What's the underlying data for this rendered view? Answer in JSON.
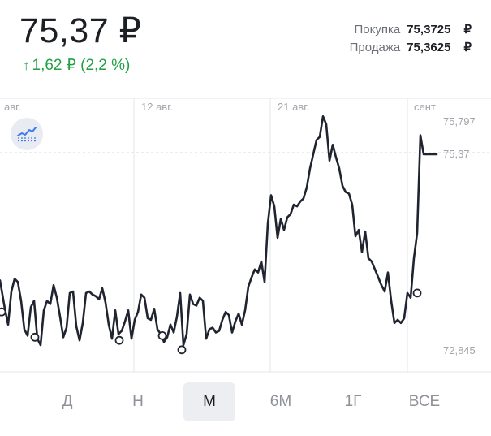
{
  "header": {
    "price": "75,37 ₽",
    "change": "1,62 ₽ (2,2 %)",
    "rates": [
      {
        "label": "Покупка",
        "value": "75,3725",
        "currency": "₽"
      },
      {
        "label": "Продажа",
        "value": "75,3625",
        "currency": "₽"
      }
    ]
  },
  "colors": {
    "line": "#1f2430",
    "up": "#23a045",
    "grid": "#e3e5e8",
    "axis_text": "#a2a6ac",
    "active_bg": "#eceef2"
  },
  "icons": {
    "change": "arrow-up-icon",
    "indicator": "trend-chart-icon"
  },
  "chart_data": {
    "type": "line",
    "x_labels": [
      "авг.",
      "12 авг.",
      "21 авг.",
      "сент"
    ],
    "y_labels": [
      "75,797",
      "75,37",
      "72,845"
    ],
    "ylim": [
      72.6,
      76.08
    ],
    "x": [
      0,
      6,
      10,
      14,
      18,
      22,
      26,
      30,
      34,
      38,
      42,
      46,
      50,
      54,
      58,
      62,
      66,
      70,
      74,
      78,
      82,
      86,
      90,
      94,
      98,
      102,
      106,
      110,
      114,
      118,
      122,
      126,
      130,
      134,
      138,
      142,
      146,
      150,
      154,
      158,
      162,
      166,
      170,
      174,
      178,
      182,
      186,
      190,
      194,
      198,
      202,
      206,
      210,
      214,
      218,
      222,
      226,
      230,
      234,
      238,
      242,
      246,
      250,
      254,
      258,
      262,
      266,
      270,
      274,
      278,
      282,
      286,
      290,
      294,
      298,
      302,
      306,
      310,
      314,
      318,
      322,
      326,
      330,
      334,
      338,
      342,
      346,
      350,
      354,
      358,
      362,
      366,
      370,
      374,
      378,
      382,
      386,
      390,
      394,
      398,
      402,
      406,
      410,
      414,
      418,
      422,
      426,
      430,
      434,
      438,
      442,
      446,
      450,
      454,
      458,
      462,
      466,
      470,
      474,
      478,
      482,
      486,
      490,
      494,
      498,
      502,
      506,
      510,
      514,
      518,
      522,
      526,
      530,
      534,
      538
    ],
    "y": [
      73.77,
      73.41,
      73.21,
      73.63,
      73.79,
      73.75,
      73.51,
      73.15,
      73.07,
      73.43,
      73.51,
      73.03,
      72.95,
      73.39,
      73.51,
      73.47,
      73.71,
      73.55,
      73.31,
      73.05,
      73.17,
      73.61,
      73.63,
      73.19,
      73.01,
      73.23,
      73.61,
      73.63,
      73.59,
      73.57,
      73.53,
      73.67,
      73.49,
      73.21,
      73.03,
      73.39,
      73.09,
      73.13,
      73.25,
      73.39,
      73.03,
      73.27,
      73.37,
      73.59,
      73.55,
      73.29,
      73.27,
      73.41,
      73.15,
      73.09,
      72.99,
      73.05,
      73.21,
      73.11,
      73.31,
      73.61,
      72.95,
      73.09,
      73.59,
      73.47,
      73.45,
      73.55,
      73.51,
      73.03,
      73.15,
      73.17,
      73.11,
      73.13,
      73.27,
      73.37,
      73.33,
      73.11,
      73.25,
      73.35,
      73.21,
      73.39,
      73.69,
      73.81,
      73.91,
      73.87,
      74.01,
      73.75,
      74.49,
      74.85,
      74.71,
      74.31,
      74.55,
      74.41,
      74.57,
      74.61,
      74.73,
      74.71,
      74.77,
      74.81,
      74.95,
      75.19,
      75.37,
      75.55,
      75.59,
      75.85,
      75.75,
      75.29,
      75.49,
      75.33,
      75.19,
      74.97,
      74.89,
      74.87,
      74.73,
      74.33,
      74.41,
      74.13,
      74.39,
      74.05,
      74.01,
      73.91,
      73.81,
      73.71,
      73.63,
      73.87,
      73.51,
      73.23,
      73.27,
      73.23,
      73.29,
      73.61,
      73.55,
      74.05,
      74.37,
      75.61,
      75.37,
      75.37,
      75.37,
      75.37,
      75.37
    ],
    "markers_x": [
      2,
      43,
      147,
      200,
      224,
      514
    ],
    "markers_y": [
      73.37,
      73.05,
      73.01,
      73.07,
      72.89,
      73.61
    ],
    "last_index": 130
  },
  "periods": [
    {
      "label": "Д",
      "active": false
    },
    {
      "label": "Н",
      "active": false
    },
    {
      "label": "М",
      "active": true
    },
    {
      "label": "6М",
      "active": false
    },
    {
      "label": "1Г",
      "active": false
    },
    {
      "label": "ВСЕ",
      "active": false
    }
  ]
}
